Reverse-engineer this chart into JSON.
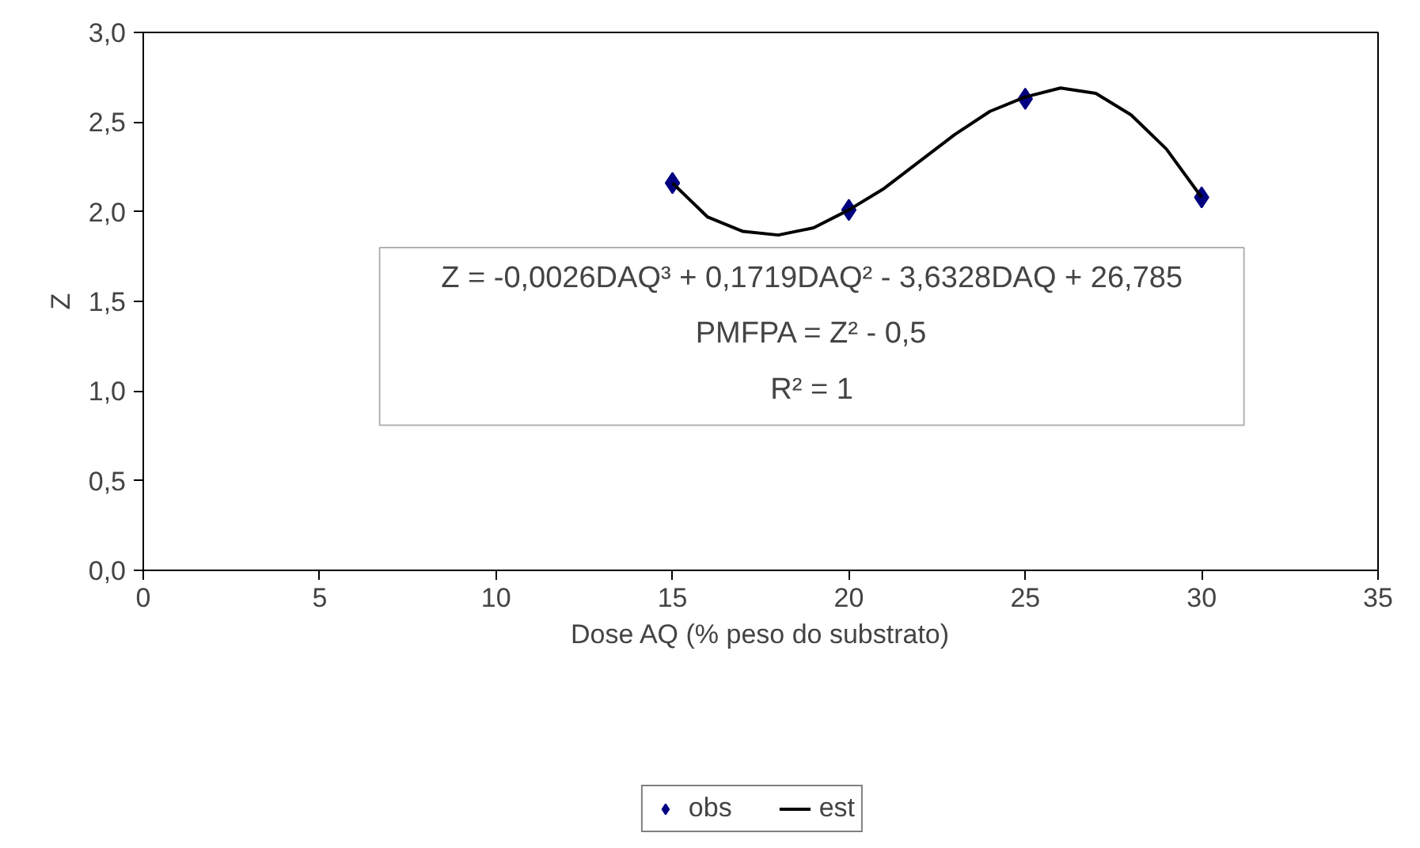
{
  "chart_data": {
    "type": "scatter",
    "xlabel": "Dose AQ (% peso do substrato)",
    "ylabel": "Z",
    "xlim": [
      0,
      35
    ],
    "xticks": [
      0,
      5,
      10,
      15,
      20,
      25,
      30,
      35
    ],
    "ylim": [
      0,
      3
    ],
    "yticks": [
      {
        "value": 0,
        "label": "0,0"
      },
      {
        "value": 0.5,
        "label": "0,5"
      },
      {
        "value": 1,
        "label": "1,0"
      },
      {
        "value": 1.5,
        "label": "1,5"
      },
      {
        "value": 2,
        "label": "2,0"
      },
      {
        "value": 2.5,
        "label": "2,5"
      },
      {
        "value": 3,
        "label": "3,0"
      }
    ],
    "grid": false,
    "legend": "bottom",
    "series": [
      {
        "name": "obs",
        "color": "#000080",
        "marker": "diamond",
        "x": [
          15,
          20,
          25,
          30
        ],
        "values": [
          2.16,
          2.01,
          2.63,
          2.08
        ]
      },
      {
        "name": "est",
        "type": "line",
        "color": "#000000",
        "line_style": "solid",
        "marker": "none",
        "x": [
          15,
          16,
          17,
          18,
          19,
          20,
          21,
          22,
          23,
          24,
          25,
          26,
          27,
          28,
          29,
          30
        ],
        "values": [
          2.16,
          1.97,
          1.89,
          1.87,
          1.91,
          2.01,
          2.13,
          2.28,
          2.43,
          2.56,
          2.64,
          2.69,
          2.66,
          2.54,
          2.35,
          2.08
        ]
      }
    ],
    "annotations": [
      "Z = -0,0026DAQ³ + 0,1719DAQ² - 3,6328DAQ + 26,785",
      "PMFPA = Z² - 0,5",
      "R² = 1"
    ]
  }
}
